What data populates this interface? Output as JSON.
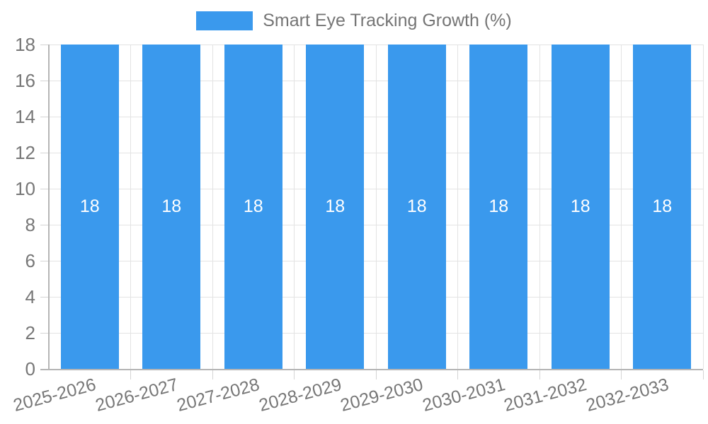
{
  "legend": {
    "label": "Smart Eye Tracking Growth (%)"
  },
  "colors": {
    "bar": "#3a99ed",
    "grid": "#e3e3e3",
    "tick": "#d4d4d4",
    "axis": "#b5b5b5",
    "text": "#777777",
    "value_label": "#ffffff"
  },
  "chart_data": {
    "type": "bar",
    "title": "Smart Eye Tracking Growth (%)",
    "categories": [
      "2025-2026",
      "2026-2027",
      "2027-2028",
      "2028-2029",
      "2029-2030",
      "2030-2031",
      "2031-2032",
      "2032-2033"
    ],
    "values": [
      18,
      18,
      18,
      18,
      18,
      18,
      18,
      18
    ],
    "value_labels": [
      "18",
      "18",
      "18",
      "18",
      "18",
      "18",
      "18",
      "18"
    ],
    "xlabel": "",
    "ylabel": "",
    "ylim": [
      0,
      18
    ],
    "yticks": [
      0,
      2,
      4,
      6,
      8,
      10,
      12,
      14,
      16,
      18
    ],
    "grid": true,
    "legend_position": "top",
    "x_label_rotation_deg": -15,
    "bar_value_labels_shown": true
  }
}
